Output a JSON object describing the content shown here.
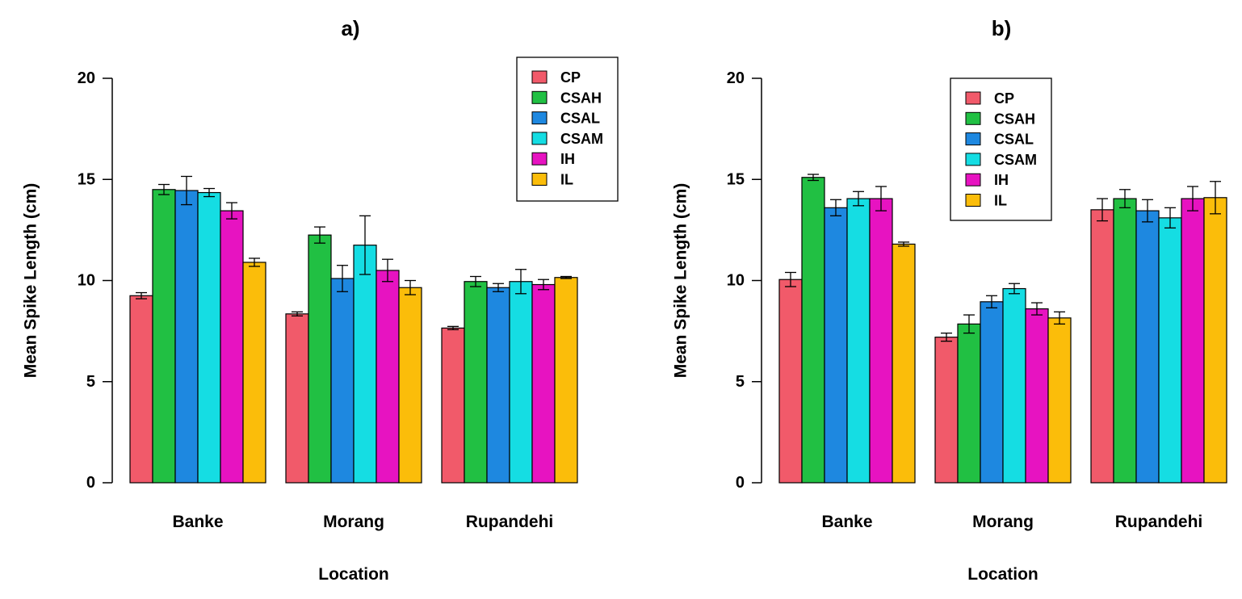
{
  "chart_data": [
    {
      "type": "bar",
      "title": "a)",
      "xlabel": "Location",
      "ylabel": "Mean Spike Length (cm)",
      "ylim": [
        0,
        20
      ],
      "yticks": [
        "0",
        "5",
        "10",
        "15",
        "20"
      ],
      "grid": false,
      "legend_position": "top-right",
      "categories": [
        "Banke",
        "Morang",
        "Rupandehi"
      ],
      "series": [
        {
          "name": "CP",
          "color": "#f15a6a",
          "values": [
            9.25,
            8.35,
            7.65
          ],
          "error": [
            0.15,
            0.1,
            0.08
          ]
        },
        {
          "name": "CSAH",
          "color": "#21c043",
          "values": [
            14.5,
            12.25,
            9.95
          ],
          "error": [
            0.25,
            0.4,
            0.25
          ]
        },
        {
          "name": "CSAL",
          "color": "#1e88e0",
          "values": [
            14.45,
            10.1,
            9.65
          ],
          "error": [
            0.7,
            0.65,
            0.2
          ]
        },
        {
          "name": "CSAM",
          "color": "#15dde3",
          "values": [
            14.35,
            11.75,
            9.95
          ],
          "error": [
            0.2,
            1.45,
            0.6
          ]
        },
        {
          "name": "IH",
          "color": "#e713c1",
          "values": [
            13.45,
            10.5,
            9.8
          ],
          "error": [
            0.4,
            0.55,
            0.25
          ]
        },
        {
          "name": "IL",
          "color": "#fbbd0a",
          "values": [
            10.9,
            9.65,
            10.15
          ],
          "error": [
            0.2,
            0.35,
            0.05
          ]
        }
      ]
    },
    {
      "type": "bar",
      "title": "b)",
      "xlabel": "Location",
      "ylabel": "Mean Spike Length (cm)",
      "ylim": [
        0,
        20
      ],
      "yticks": [
        "0",
        "5",
        "10",
        "15",
        "20"
      ],
      "grid": false,
      "legend_position": "top-center",
      "categories": [
        "Banke",
        "Morang",
        "Rupandehi"
      ],
      "series": [
        {
          "name": "CP",
          "color": "#f15a6a",
          "values": [
            10.05,
            7.2,
            13.5
          ],
          "error": [
            0.35,
            0.2,
            0.55
          ]
        },
        {
          "name": "CSAH",
          "color": "#21c043",
          "values": [
            15.1,
            7.85,
            14.05
          ],
          "error": [
            0.15,
            0.45,
            0.45
          ]
        },
        {
          "name": "CSAL",
          "color": "#1e88e0",
          "values": [
            13.6,
            8.95,
            13.45
          ],
          "error": [
            0.4,
            0.3,
            0.55
          ]
        },
        {
          "name": "CSAM",
          "color": "#15dde3",
          "values": [
            14.05,
            9.6,
            13.1
          ],
          "error": [
            0.35,
            0.25,
            0.5
          ]
        },
        {
          "name": "IH",
          "color": "#e713c1",
          "values": [
            14.05,
            8.6,
            14.05
          ],
          "error": [
            0.6,
            0.3,
            0.6
          ]
        },
        {
          "name": "IL",
          "color": "#fbbd0a",
          "values": [
            11.8,
            8.15,
            14.1
          ],
          "error": [
            0.1,
            0.3,
            0.8
          ]
        }
      ]
    }
  ]
}
